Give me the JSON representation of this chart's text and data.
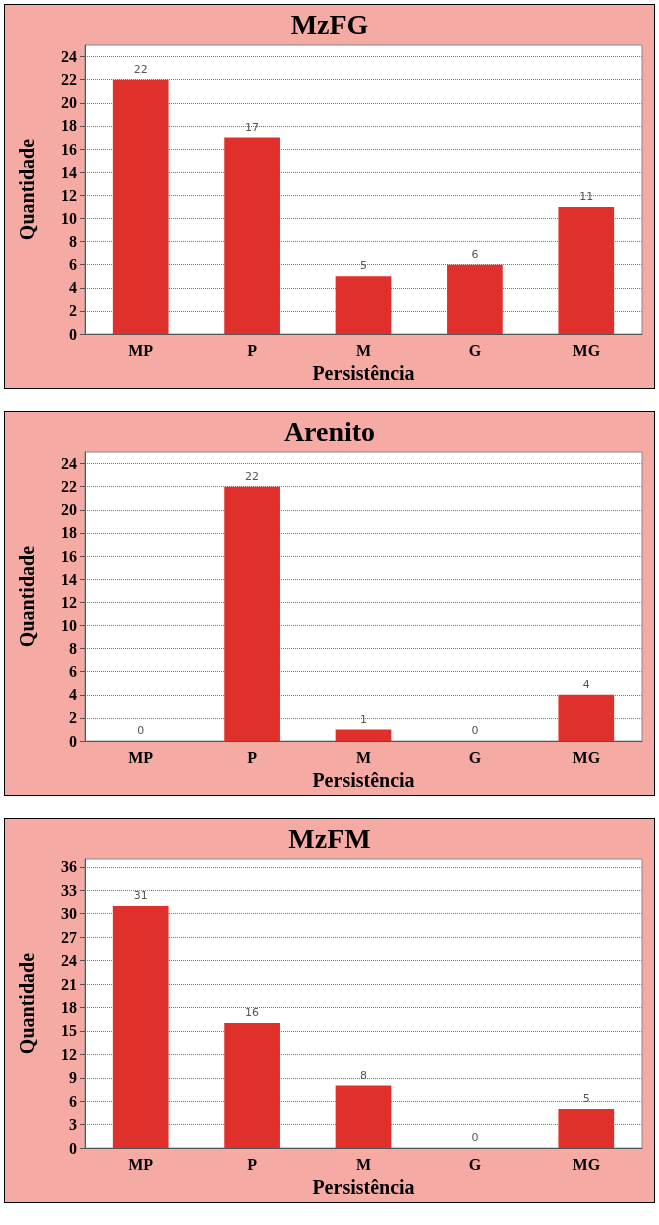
{
  "chart_data": [
    {
      "type": "bar",
      "title": "MzFG",
      "xlabel": "Persistência",
      "ylabel": "Quantidade",
      "categories": [
        "MP",
        "P",
        "M",
        "G",
        "MG"
      ],
      "values": [
        22,
        17,
        5,
        6,
        11
      ],
      "color": "#e0302b",
      "ylim": [
        0,
        25
      ],
      "yticks": [
        0,
        2,
        4,
        6,
        8,
        10,
        12,
        14,
        16,
        18,
        20,
        22,
        24
      ],
      "grid": "y",
      "data_labels": true
    },
    {
      "type": "bar",
      "title": "Arenito",
      "xlabel": "Persistência",
      "ylabel": "Quantidade",
      "categories": [
        "MP",
        "P",
        "M",
        "G",
        "MG"
      ],
      "values": [
        0,
        22,
        1,
        0,
        4
      ],
      "color": "#e0302b",
      "ylim": [
        0,
        25
      ],
      "yticks": [
        0,
        2,
        4,
        6,
        8,
        10,
        12,
        14,
        16,
        18,
        20,
        22,
        24
      ],
      "grid": "y",
      "data_labels": true
    },
    {
      "type": "bar",
      "title": "MzFM",
      "xlabel": "Persistência",
      "ylabel": "Quantidade",
      "categories": [
        "MP",
        "P",
        "M",
        "G",
        "MG"
      ],
      "values": [
        31,
        16,
        8,
        0,
        5
      ],
      "color": "#e0302b",
      "ylim": [
        0,
        37
      ],
      "yticks": [
        0,
        3,
        6,
        9,
        12,
        15,
        18,
        21,
        24,
        27,
        30,
        33,
        36
      ],
      "grid": "y",
      "data_labels": true
    }
  ]
}
